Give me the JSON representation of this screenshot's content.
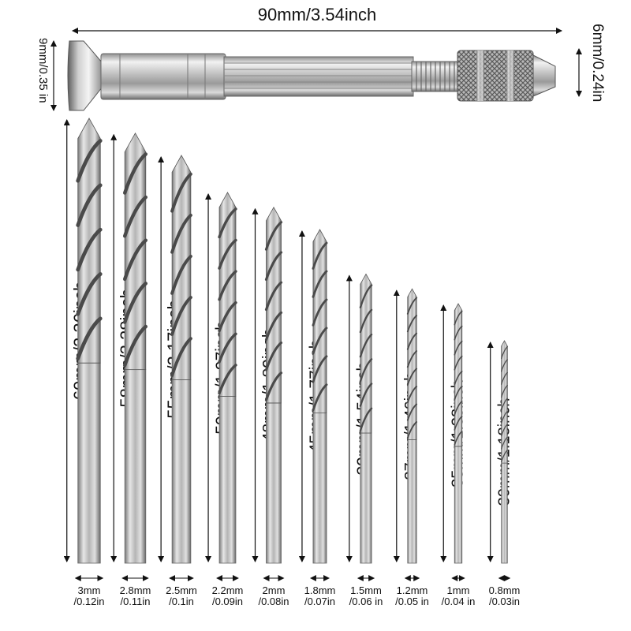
{
  "handle": {
    "length_label": "90mm/3.54inch",
    "left_height_label": "9mm/0.35 in",
    "right_height_label": "6mm/0.24in"
  },
  "bits": [
    {
      "length_label": "60mm/2.36inch",
      "dia_mm": "3mm",
      "dia_in": "/0.12in",
      "length_mm": 60,
      "diameter_mm": 3.0
    },
    {
      "length_label": "58mm/2.28inch",
      "dia_mm": "2.8mm",
      "dia_in": "/0.11in",
      "length_mm": 58,
      "diameter_mm": 2.8
    },
    {
      "length_label": "55mm/2.17inch",
      "dia_mm": "2.5mm",
      "dia_in": "/0.1in",
      "length_mm": 55,
      "diameter_mm": 2.5
    },
    {
      "length_label": "50mm/1.97inch",
      "dia_mm": "2.2mm",
      "dia_in": "/0.09in",
      "length_mm": 50,
      "diameter_mm": 2.2
    },
    {
      "length_label": "48mm/1.89inch",
      "dia_mm": "2mm",
      "dia_in": "/0.08in",
      "length_mm": 48,
      "diameter_mm": 2.0
    },
    {
      "length_label": "45mm/1.77inch",
      "dia_mm": "1.8mm",
      "dia_in": "/0.07in",
      "length_mm": 45,
      "diameter_mm": 1.8
    },
    {
      "length_label": "39mm/1.54inch",
      "dia_mm": "1.5mm",
      "dia_in": "/0.06 in",
      "length_mm": 39,
      "diameter_mm": 1.5
    },
    {
      "length_label": "37mm/1.46inch",
      "dia_mm": "1.2mm",
      "dia_in": "/0.05 in",
      "length_mm": 37,
      "diameter_mm": 1.2
    },
    {
      "length_label": "35mm/1.38inch",
      "dia_mm": "1mm",
      "dia_in": "/0.04 in",
      "length_mm": 35,
      "diameter_mm": 1.0
    },
    {
      "length_label": "30mm/1.18inch",
      "dia_mm": "0.8mm",
      "dia_in": "/0.03in",
      "length_mm": 30,
      "diameter_mm": 0.8
    }
  ]
}
